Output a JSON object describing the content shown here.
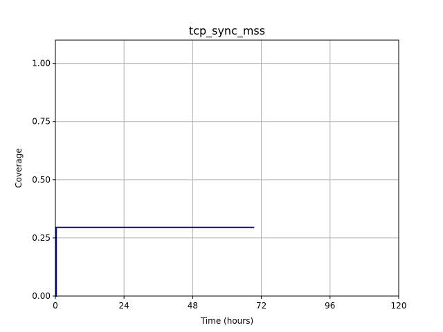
{
  "chart_data": {
    "type": "line",
    "title": "tcp_sync_mss",
    "xlabel": "Time (hours)",
    "ylabel": "Coverage",
    "xlim": [
      0,
      120
    ],
    "ylim": [
      0,
      1.1
    ],
    "xticks": [
      0,
      24,
      48,
      72,
      96,
      120
    ],
    "xtick_labels": [
      "0",
      "24",
      "48",
      "72",
      "96",
      "120"
    ],
    "yticks": [
      0,
      0.25,
      0.5,
      0.75,
      1.0
    ],
    "ytick_labels": [
      "0.00",
      "0.25",
      "0.50",
      "0.75",
      "1.00"
    ],
    "grid": true,
    "series": [
      {
        "color": "#0000cc",
        "x": [
          0,
          0.3,
          0.3,
          69.5
        ],
        "y": [
          0,
          0,
          0.295,
          0.295
        ]
      }
    ]
  }
}
